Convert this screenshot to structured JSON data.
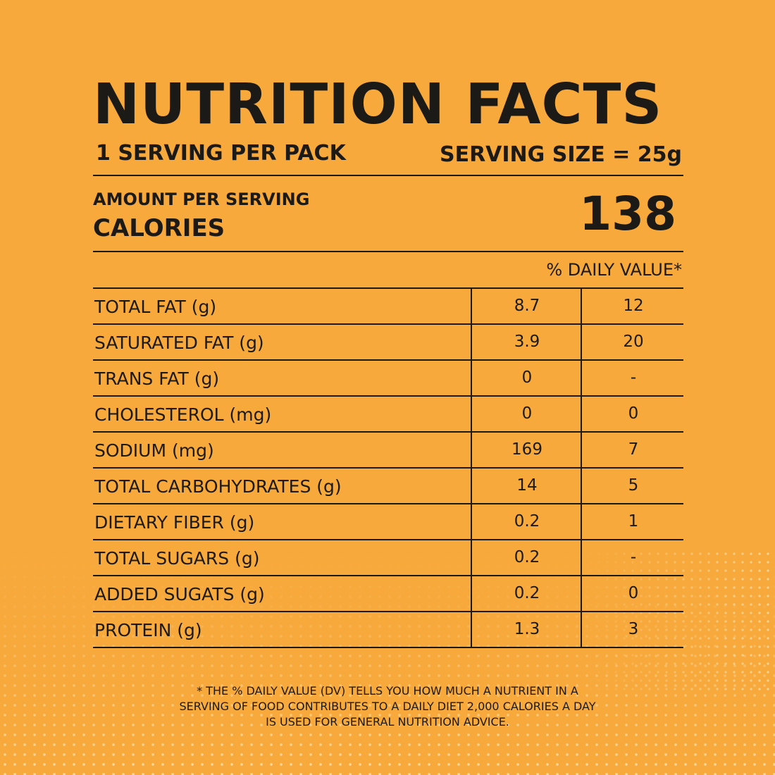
{
  "title": "NUTRITION FACTS",
  "serving_per": "1 SERVING PER PACK",
  "serving_size": "SERVING SIZE = 25g",
  "amount_per_serving": "AMOUNT PER SERVING",
  "calories_label": "CALORIES",
  "calories_value": "138",
  "daily_value_header": "% DAILY VALUE*",
  "nutrients": [
    {
      "name": "TOTAL FAT (g)",
      "amount": "8.7",
      "dv": "12"
    },
    {
      "name": "SATURATED FAT (g)",
      "amount": "3.9",
      "dv": "20"
    },
    {
      "name": "TRANS FAT (g)",
      "amount": "0",
      "dv": "-"
    },
    {
      "name": "CHOLESTEROL (mg)",
      "amount": "0",
      "dv": "0"
    },
    {
      "name": "SODIUM (mg)",
      "amount": "169",
      "dv": "7"
    },
    {
      "name": "TOTAL CARBOHYDRATES (g)",
      "amount": "14",
      "dv": "5"
    },
    {
      "name": "DIETARY FIBER (g)",
      "amount": "0.2",
      "dv": "1"
    },
    {
      "name": "TOTAL SUGARS (g)",
      "amount": "0.2",
      "dv": "-"
    },
    {
      "name": "ADDED SUGATS (g)",
      "amount": "0.2",
      "dv": "0"
    },
    {
      "name": "PROTEIN (g)",
      "amount": "1.3",
      "dv": "3"
    }
  ],
  "footnote": "* THE % DAILY VALUE (DV) TELLS YOU HOW MUCH A NUTRIENT IN A SERVING OF FOOD CONTRIBUTES TO A DAILY DIET 2,000 CALORIES A DAY IS USED FOR GENERAL NUTRITION ADVICE.",
  "colors": {
    "background": "#f7a93b",
    "ink": "#1c1a17"
  }
}
